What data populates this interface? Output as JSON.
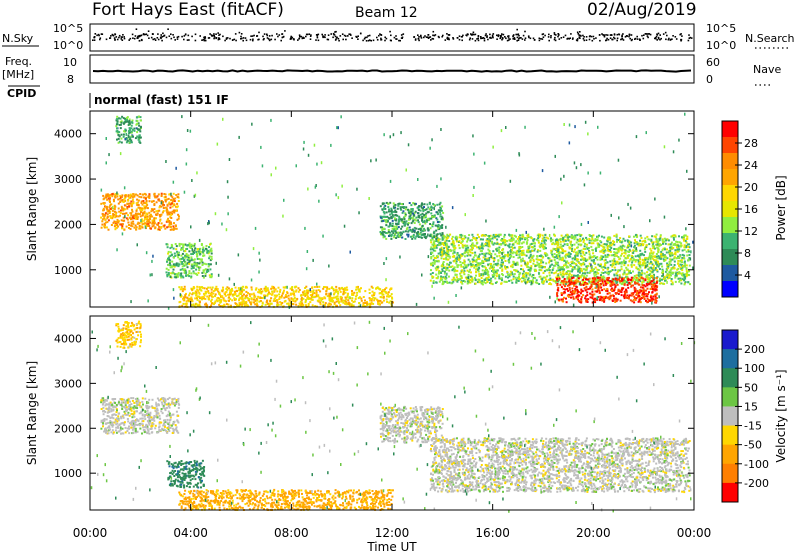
{
  "header": {
    "station": "Fort Hays East (fitACF)",
    "beam": "Beam 12",
    "date": "02/Aug/2019"
  },
  "noise_panel": {
    "left_label": "N.Sky",
    "right_label": "N.Search",
    "ticks_left": [
      "10^5",
      "10^0"
    ],
    "ticks_right": [
      "10^5",
      "10^0"
    ]
  },
  "freq_panel": {
    "left_label_line1": "Freq.",
    "left_label_line2": "[MHz]",
    "right_label": "Nave",
    "ticks_left": [
      "10",
      "8"
    ],
    "ticks_right": [
      "60",
      "0"
    ]
  },
  "cpid": {
    "label": "CPID",
    "text": "normal (fast) 151 IF"
  },
  "power_panel": {
    "ylabel": "Slant Range [km]",
    "yticks": [
      "4000",
      "3000",
      "2000",
      "1000"
    ],
    "colorbar_label": "Power [dB]",
    "colorbar_ticks": [
      "28",
      "24",
      "20",
      "16",
      "12",
      "8",
      "4"
    ],
    "colorbar_colors": [
      "#ff0000",
      "#ff4500",
      "#ff8c00",
      "#ffa500",
      "#ffd700",
      "#e6e600",
      "#90ee40",
      "#3cb371",
      "#2e8b57",
      "#1e5aa0",
      "#0000ff"
    ]
  },
  "velocity_panel": {
    "ylabel": "Slant Range [km]",
    "yticks": [
      "4000",
      "3000",
      "2000",
      "1000"
    ],
    "colorbar_label": "Velocity [m s⁻¹]",
    "colorbar_ticks": [
      "200",
      "100",
      "50",
      "15",
      "-15",
      "-50",
      "-100",
      "-200"
    ],
    "colorbar_colors": [
      "#1a1acd",
      "#1e6e9f",
      "#2e8b57",
      "#6cc644",
      "#bebebe",
      "#ffd700",
      "#ffa500",
      "#ff7f00",
      "#ff0000"
    ]
  },
  "xaxis": {
    "label": "Time UT",
    "ticks": [
      "00:00",
      "04:00",
      "08:00",
      "12:00",
      "16:00",
      "20:00",
      "00:00"
    ]
  },
  "chart_data": [
    {
      "type": "heatmap",
      "title": "Power",
      "xlabel": "Time UT",
      "ylabel": "Slant Range [km]",
      "xlim_hours": [
        0,
        24
      ],
      "ylim": [
        180,
        4500
      ],
      "colorbar": {
        "label": "Power [dB]",
        "range": [
          0,
          30
        ]
      },
      "regions": [
        {
          "t0": 0.4,
          "t1": 3.5,
          "r0": 1900,
          "r1": 2700,
          "value": 22
        },
        {
          "t0": 3.0,
          "t1": 4.8,
          "r0": 850,
          "r1": 1600,
          "value": 10
        },
        {
          "t0": 3.5,
          "t1": 12.0,
          "r0": 200,
          "r1": 650,
          "value": 18
        },
        {
          "t0": 13.5,
          "t1": 23.8,
          "r0": 700,
          "r1": 1800,
          "value": 12
        },
        {
          "t0": 18.5,
          "t1": 22.5,
          "r0": 300,
          "r1": 850,
          "value": 28
        },
        {
          "t0": 11.5,
          "t1": 14.0,
          "r0": 1700,
          "r1": 2500,
          "value": 8
        },
        {
          "t0": 1.0,
          "t1": 2.0,
          "r0": 3800,
          "r1": 4400,
          "value": 8
        }
      ]
    },
    {
      "type": "heatmap",
      "title": "Velocity",
      "xlabel": "Time UT",
      "ylabel": "Slant Range [km]",
      "xlim_hours": [
        0,
        24
      ],
      "ylim": [
        180,
        4500
      ],
      "colorbar": {
        "label": "Velocity [m s⁻¹]",
        "range": [
          -200,
          200
        ]
      },
      "regions": [
        {
          "t0": 0.4,
          "t1": 3.5,
          "r0": 1900,
          "r1": 2700,
          "value": 0
        },
        {
          "t0": 3.0,
          "t1": 4.5,
          "r0": 700,
          "r1": 1300,
          "value": 60
        },
        {
          "t0": 3.5,
          "t1": 12.0,
          "r0": 200,
          "r1": 650,
          "value": -50
        },
        {
          "t0": 13.5,
          "t1": 23.8,
          "r0": 600,
          "r1": 1800,
          "value": 0
        },
        {
          "t0": 11.5,
          "t1": 14.0,
          "r0": 1700,
          "r1": 2500,
          "value": 0
        },
        {
          "t0": 1.0,
          "t1": 2.0,
          "r0": 3800,
          "r1": 4400,
          "value": -30
        }
      ]
    }
  ]
}
